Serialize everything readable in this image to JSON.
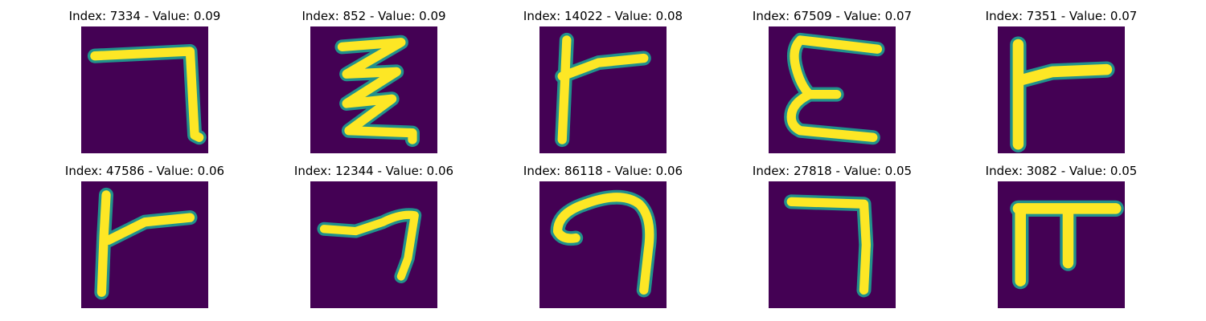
{
  "palette": {
    "background": "#440154",
    "stroke_core": "#fde725",
    "stroke_edge": "#21918c",
    "stroke_mid": "#5ec962"
  },
  "panels": [
    {
      "title": "Index: 7334 - Value: 0.09",
      "glyph": "seven-stroke-icon"
    },
    {
      "title": "Index: 852 - Value: 0.09",
      "glyph": "zigzag-stroke-icon"
    },
    {
      "title": "Index: 14022 - Value: 0.08",
      "glyph": "gamma-stroke-icon"
    },
    {
      "title": "Index: 67509 - Value: 0.07",
      "glyph": "epsilon-stroke-icon"
    },
    {
      "title": "Index: 7351 - Value: 0.07",
      "glyph": "gamma-stroke-icon"
    },
    {
      "title": "Index: 47586 - Value: 0.06",
      "glyph": "gamma-stroke-icon"
    },
    {
      "title": "Index: 12344 - Value: 0.06",
      "glyph": "seven-stroke-icon"
    },
    {
      "title": "Index: 86118 - Value: 0.06",
      "glyph": "hook-stroke-icon"
    },
    {
      "title": "Index: 27818 - Value: 0.05",
      "glyph": "seven-stroke-icon"
    },
    {
      "title": "Index: 3082 - Value: 0.05",
      "glyph": "pi-stroke-icon"
    }
  ]
}
